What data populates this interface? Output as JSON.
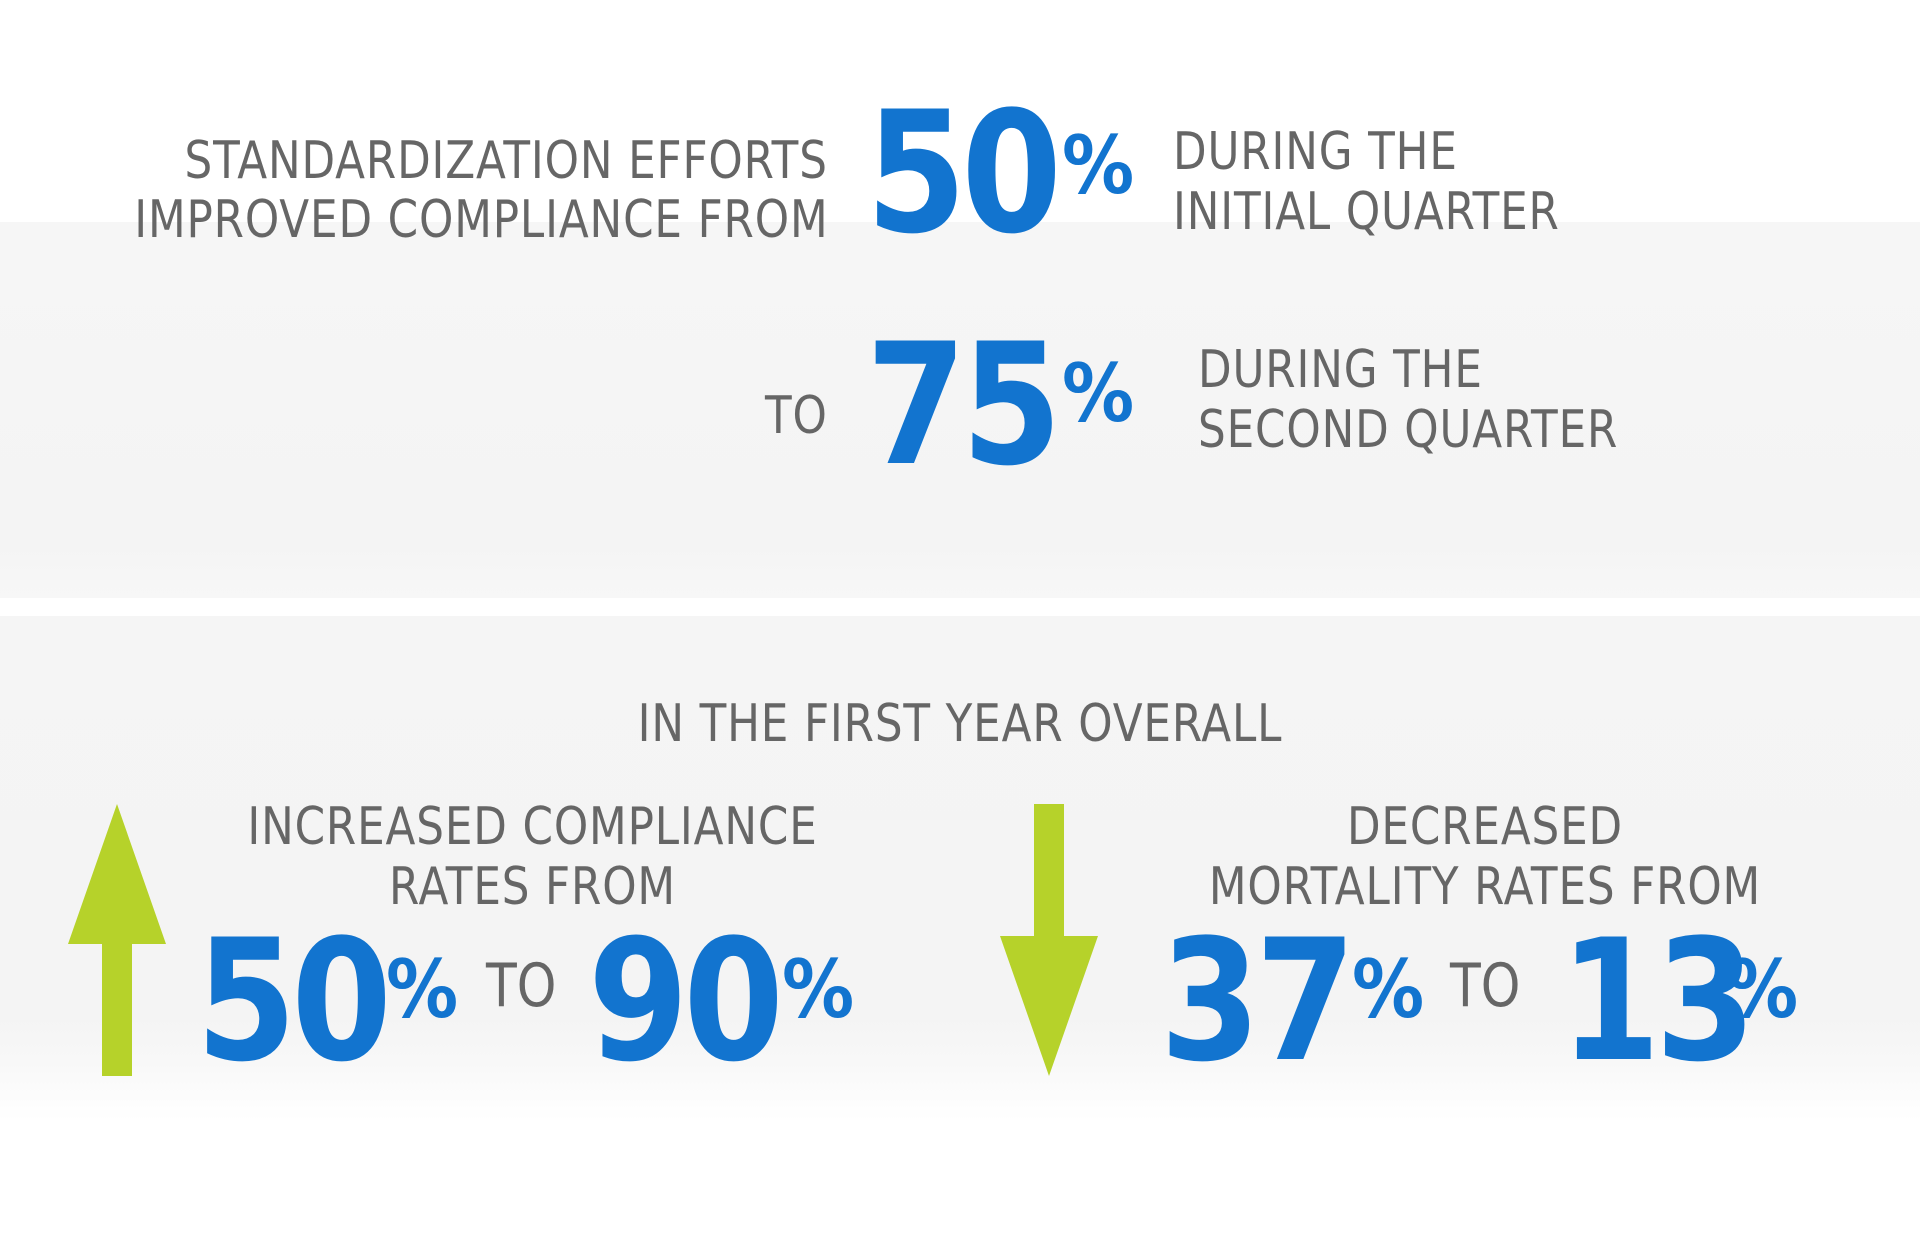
{
  "colors": {
    "accent_blue": "#1274cf",
    "arrow_green": "#b6d22a",
    "text_gray": "#666666",
    "band_gray": "#f4f4f4"
  },
  "section1": {
    "lead_line1": "STANDARDIZATION EFFORTS",
    "lead_line2": "IMPROVED COMPLIANCE FROM",
    "stat1_value": "50",
    "stat1_unit": "%",
    "stat1_caption_line1": "DURING THE",
    "stat1_caption_line2": "INITIAL QUARTER",
    "connector": "TO",
    "stat2_value": "75",
    "stat2_unit": "%",
    "stat2_caption_line1": "DURING THE",
    "stat2_caption_line2": "SECOND QUARTER"
  },
  "section2": {
    "heading": "IN THE FIRST YEAR OVERALL",
    "left": {
      "icon": "up-arrow-icon",
      "label_line1": "INCREASED COMPLIANCE",
      "label_line2": "RATES FROM",
      "from_value": "50",
      "from_unit": "%",
      "connector": "TO",
      "to_value": "90",
      "to_unit": "%"
    },
    "right": {
      "icon": "down-arrow-icon",
      "label_line1": "DECREASED",
      "label_line2": "MORTALITY RATES FROM",
      "from_value": "37",
      "from_unit": "%",
      "connector": "TO",
      "to_value": "13",
      "to_unit": "%"
    }
  }
}
